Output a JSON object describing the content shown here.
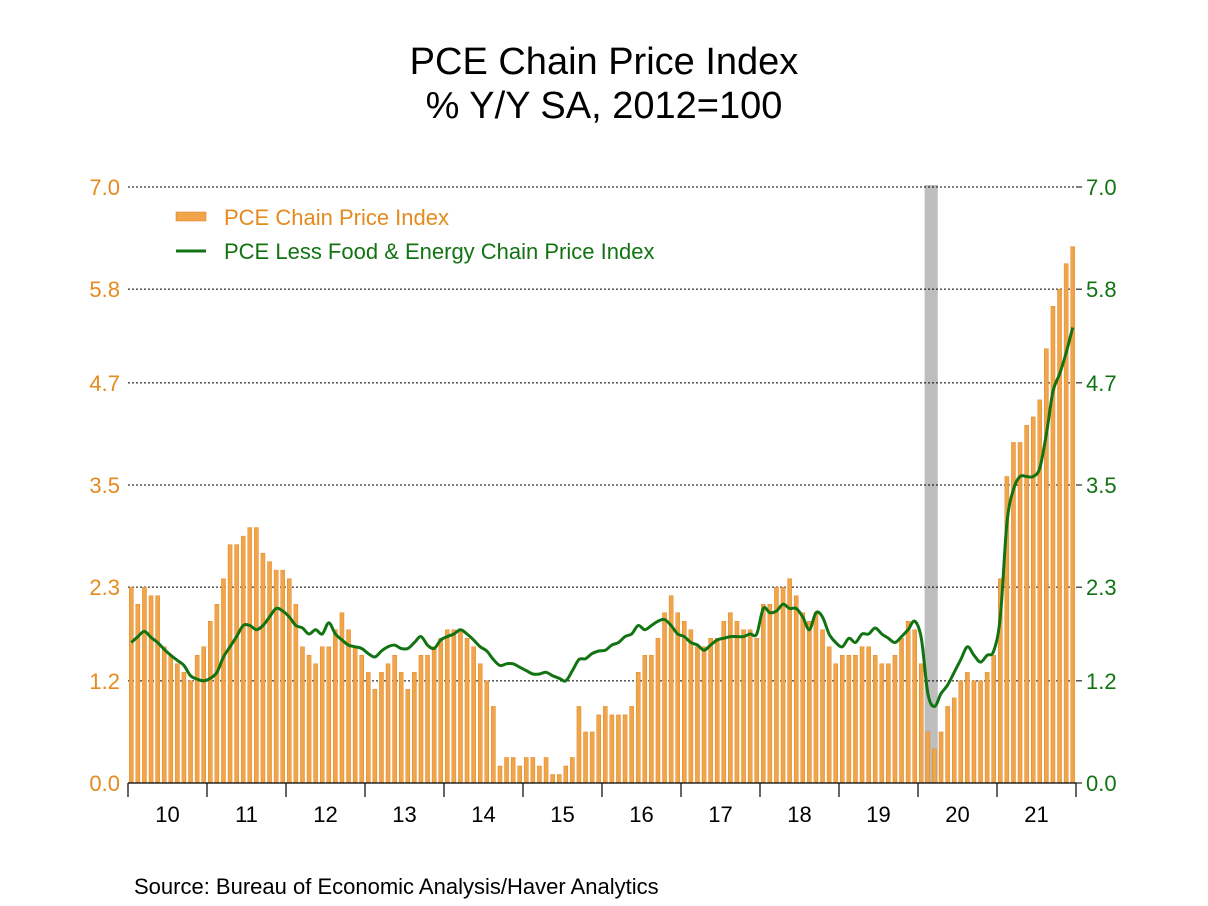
{
  "chart_data": {
    "type": "bar+line",
    "title": "PCE Chain Price Index",
    "subtitle": "% Y/Y   SA, 2012=100",
    "source": "Source:  Bureau of Economic Analysis/Haver Analytics",
    "ylim": [
      0.0,
      7.0
    ],
    "y_ticks": [
      "0.0",
      "1.2",
      "2.3",
      "3.5",
      "4.7",
      "5.8",
      "7.0"
    ],
    "x_ticks": [
      "10",
      "11",
      "12",
      "13",
      "14",
      "15",
      "16",
      "17",
      "18",
      "19",
      "20",
      "21"
    ],
    "start": "2010-01",
    "recession": {
      "start_index": 121,
      "end_index": 123,
      "label": "recession"
    },
    "legend_position": "top-left",
    "colors": {
      "bar": "#F0A54A",
      "bar_edge": "#E07810",
      "line": "#127312",
      "left_axis": "#E58A1F",
      "right_axis": "#127312",
      "recession": "#BEBEBE"
    },
    "series": [
      {
        "name": "PCE Chain Price Index",
        "kind": "bar",
        "values": [
          2.3,
          2.1,
          2.3,
          2.2,
          2.2,
          1.6,
          1.5,
          1.4,
          1.3,
          1.2,
          1.5,
          1.6,
          1.9,
          2.1,
          2.4,
          2.8,
          2.8,
          2.9,
          3.0,
          3.0,
          2.7,
          2.6,
          2.5,
          2.5,
          2.4,
          2.1,
          1.6,
          1.5,
          1.4,
          1.6,
          1.6,
          1.8,
          2.0,
          1.8,
          1.6,
          1.5,
          1.3,
          1.1,
          1.3,
          1.4,
          1.5,
          1.3,
          1.1,
          1.3,
          1.5,
          1.5,
          1.6,
          1.7,
          1.8,
          1.8,
          1.8,
          1.7,
          1.6,
          1.4,
          1.2,
          0.9,
          0.2,
          0.3,
          0.3,
          0.2,
          0.3,
          0.3,
          0.2,
          0.3,
          0.1,
          0.1,
          0.2,
          0.3,
          0.9,
          0.6,
          0.6,
          0.8,
          0.9,
          0.8,
          0.8,
          0.8,
          0.9,
          1.3,
          1.5,
          1.5,
          1.7,
          2.0,
          2.2,
          2.0,
          1.9,
          1.8,
          1.6,
          1.6,
          1.7,
          1.7,
          1.9,
          2.0,
          1.9,
          1.8,
          1.8,
          1.7,
          2.1,
          2.1,
          2.3,
          2.3,
          2.4,
          2.2,
          2.0,
          1.9,
          2.0,
          1.8,
          1.6,
          1.4,
          1.5,
          1.5,
          1.5,
          1.6,
          1.6,
          1.5,
          1.4,
          1.4,
          1.5,
          1.7,
          1.9,
          1.8,
          1.4,
          0.6,
          0.4,
          0.6,
          0.9,
          1.0,
          1.2,
          1.3,
          1.2,
          1.2,
          1.3,
          1.5,
          2.4,
          3.6,
          4.0,
          4.0,
          4.2,
          4.3,
          4.5,
          5.1,
          5.6,
          5.8,
          6.1,
          6.3
        ],
        "color": "#F0A54A"
      },
      {
        "name": "PCE Less Food & Energy Chain Price Index",
        "kind": "line",
        "values": [
          1.65,
          1.72,
          1.78,
          1.71,
          1.65,
          1.57,
          1.5,
          1.44,
          1.38,
          1.26,
          1.22,
          1.2,
          1.23,
          1.3,
          1.48,
          1.6,
          1.72,
          1.85,
          1.85,
          1.8,
          1.85,
          1.95,
          2.05,
          2.02,
          1.95,
          1.85,
          1.82,
          1.75,
          1.8,
          1.75,
          1.88,
          1.75,
          1.68,
          1.62,
          1.6,
          1.58,
          1.52,
          1.48,
          1.55,
          1.6,
          1.62,
          1.58,
          1.58,
          1.65,
          1.72,
          1.62,
          1.58,
          1.68,
          1.72,
          1.75,
          1.8,
          1.75,
          1.68,
          1.6,
          1.55,
          1.45,
          1.38,
          1.4,
          1.4,
          1.36,
          1.32,
          1.28,
          1.28,
          1.3,
          1.26,
          1.23,
          1.2,
          1.32,
          1.45,
          1.46,
          1.52,
          1.55,
          1.56,
          1.62,
          1.65,
          1.72,
          1.75,
          1.85,
          1.8,
          1.85,
          1.9,
          1.92,
          1.85,
          1.75,
          1.72,
          1.65,
          1.62,
          1.56,
          1.62,
          1.68,
          1.7,
          1.72,
          1.72,
          1.72,
          1.75,
          1.75,
          2.05,
          2.0,
          2.02,
          2.1,
          2.05,
          2.05,
          1.95,
          1.8,
          2.0,
          1.95,
          1.75,
          1.65,
          1.6,
          1.7,
          1.65,
          1.75,
          1.75,
          1.82,
          1.75,
          1.7,
          1.65,
          1.72,
          1.8,
          1.9,
          1.7,
          1.05,
          0.9,
          1.05,
          1.15,
          1.3,
          1.45,
          1.6,
          1.5,
          1.42,
          1.5,
          1.55,
          1.95,
          3.05,
          3.45,
          3.6,
          3.6,
          3.6,
          3.7,
          4.1,
          4.6,
          4.8,
          5.05,
          5.35
        ],
        "color": "#127312"
      }
    ]
  }
}
